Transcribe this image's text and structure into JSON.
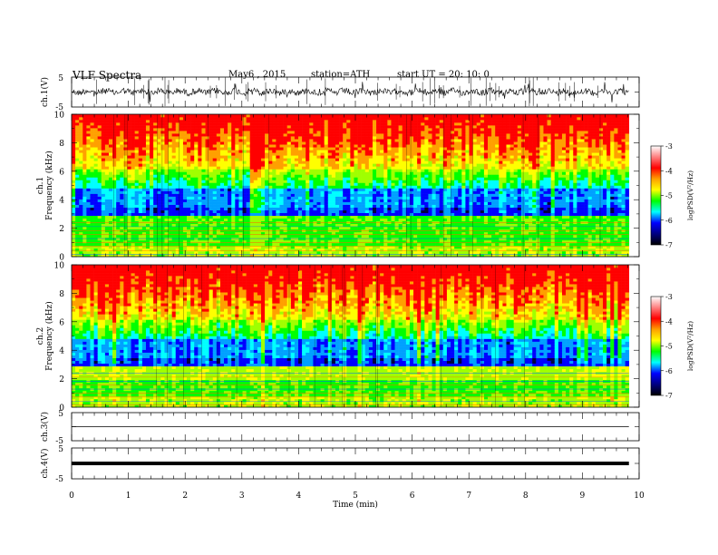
{
  "header": {
    "title": "VLF  Spectra",
    "date": "May6  , 2015",
    "station": "station=ATH",
    "start": "start  UT =   20: 10: 0"
  },
  "chart_data": [
    {
      "type": "line",
      "panel": "ch1-waveform",
      "ylabel": "ch.1(V)",
      "yticks": [
        "5",
        "-5"
      ],
      "ylim": [
        -5,
        5
      ],
      "xlim": [
        0,
        10
      ],
      "data_end_min": 9.82,
      "mean_level": 0.1,
      "color": "#000000"
    },
    {
      "type": "heatmap",
      "panel": "ch1-spectrogram",
      "ylabel_channel": "ch.1",
      "ylabel": "Frequency  (kHz)",
      "yticks": [
        "0",
        "2",
        "4",
        "6",
        "8",
        "10"
      ],
      "ylim": [
        0,
        10
      ],
      "xlim": [
        0,
        10
      ],
      "colorbar": {
        "label": "logPSD(V²/Hz)",
        "ticks": [
          "-3",
          "-4",
          "-5",
          "-6",
          "-7"
        ],
        "range": [
          -7,
          -3
        ],
        "colors": [
          "#ffffff",
          "#ff0000",
          "#ffff00",
          "#00ff00",
          "#00ffff",
          "#0000ff",
          "#000000"
        ]
      }
    },
    {
      "type": "heatmap",
      "panel": "ch2-spectrogram",
      "ylabel_channel": "ch.2",
      "ylabel": "Frequency  (kHz)",
      "yticks": [
        "0",
        "2",
        "4",
        "6",
        "8",
        "10"
      ],
      "ylim": [
        0,
        10
      ],
      "xlim": [
        0,
        10
      ],
      "colorbar": {
        "label": "logPSD(V²/Hz)",
        "ticks": [
          "-3",
          "-4",
          "-5",
          "-6",
          "-7"
        ],
        "range": [
          -7,
          -3
        ],
        "colors": [
          "#ffffff",
          "#ff0000",
          "#ffff00",
          "#00ff00",
          "#00ffff",
          "#0000ff",
          "#000000"
        ]
      }
    },
    {
      "type": "line",
      "panel": "ch3-waveform",
      "ylabel": "ch.3(V)",
      "yticks": [
        "5",
        "-5"
      ],
      "ylim": [
        -5,
        5
      ],
      "xlim": [
        0,
        10
      ],
      "data_end_min": 9.82,
      "mean_level": 0
    },
    {
      "type": "line",
      "panel": "ch4-waveform",
      "ylabel": "ch.4(V)",
      "yticks": [
        "5",
        "-5"
      ],
      "ylim": [
        -5,
        5
      ],
      "xlim": [
        0,
        10
      ],
      "data_end_min": 9.82,
      "mean_level": 0
    }
  ],
  "xaxis": {
    "label": "Time  (min)",
    "ticks": [
      "0",
      "1",
      "2",
      "3",
      "4",
      "5",
      "6",
      "7",
      "8",
      "9",
      "10"
    ]
  }
}
